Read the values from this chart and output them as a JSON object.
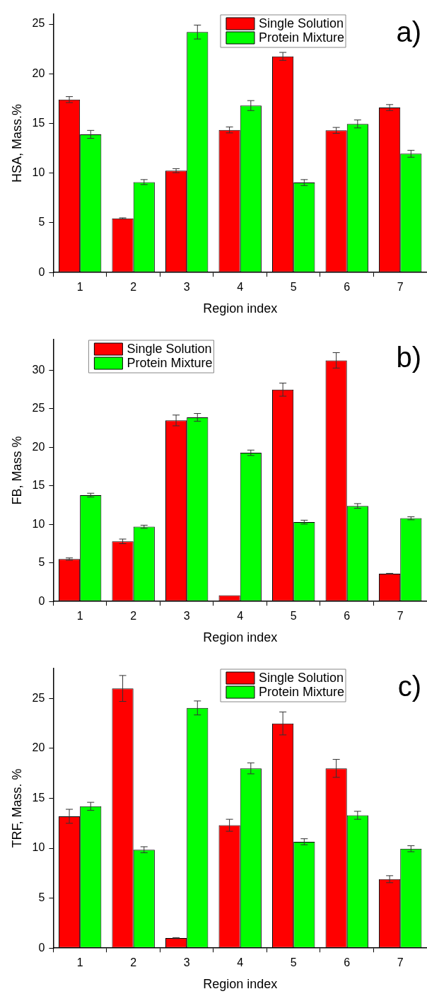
{
  "chart_data": [
    {
      "type": "bar",
      "xlabel": "Region index",
      "ylabel": "HSA, Mass.%",
      "categories": [
        "1",
        "2",
        "3",
        "4",
        "5",
        "6",
        "7"
      ],
      "ylim": [
        0,
        26
      ],
      "yticks": [
        0,
        5,
        10,
        15,
        20,
        25
      ],
      "grid": false,
      "legend": "top right",
      "annotations": [
        "a)"
      ],
      "series": [
        {
          "name": "Single Solution",
          "color": "#ff0000",
          "values": [
            17.4,
            5.45,
            10.25,
            14.35,
            21.75,
            14.3,
            16.6
          ],
          "errors": [
            0.3,
            0.05,
            0.2,
            0.3,
            0.4,
            0.3,
            0.3
          ]
        },
        {
          "name": "Protein Mixture",
          "color": "#00ff00",
          "values": [
            13.9,
            9.1,
            24.2,
            16.8,
            9.05,
            14.95,
            11.95
          ],
          "errors": [
            0.4,
            0.25,
            0.7,
            0.5,
            0.3,
            0.4,
            0.35
          ]
        }
      ]
    },
    {
      "type": "bar",
      "xlabel": "Region index",
      "ylabel": "FB, Mass %",
      "categories": [
        "1",
        "2",
        "3",
        "4",
        "5",
        "6",
        "7"
      ],
      "ylim": [
        0,
        34
      ],
      "yticks": [
        0,
        5,
        10,
        15,
        20,
        25,
        30
      ],
      "grid": false,
      "legend": "top left",
      "annotations": [
        "b)"
      ],
      "series": [
        {
          "name": "Single Solution",
          "color": "#ff0000",
          "values": [
            5.5,
            7.8,
            23.5,
            0.8,
            27.5,
            31.3,
            3.6
          ],
          "errors": [
            0.15,
            0.3,
            0.7,
            null,
            0.85,
            1.0,
            0.05
          ]
        },
        {
          "name": "Protein Mixture",
          "color": "#00ff00",
          "values": [
            13.8,
            9.7,
            23.9,
            19.3,
            10.3,
            12.4,
            10.8
          ],
          "errors": [
            0.25,
            0.2,
            0.5,
            0.35,
            0.25,
            0.3,
            0.2
          ]
        }
      ]
    },
    {
      "type": "bar",
      "xlabel": "Region index",
      "ylabel": "TRF, Mass. %",
      "categories": [
        "1",
        "2",
        "3",
        "4",
        "5",
        "6",
        "7"
      ],
      "ylim": [
        0,
        28
      ],
      "yticks": [
        0,
        5,
        10,
        15,
        20,
        25
      ],
      "grid": false,
      "legend": "top right",
      "annotations": [
        "c)"
      ],
      "series": [
        {
          "name": "Single Solution",
          "color": "#ff0000",
          "values": [
            13.2,
            26.0,
            1.0,
            12.3,
            22.5,
            18.0,
            6.9
          ],
          "errors": [
            0.7,
            1.3,
            0.05,
            0.6,
            1.15,
            0.9,
            0.35
          ]
        },
        {
          "name": "Protein Mixture",
          "color": "#00ff00",
          "values": [
            14.2,
            9.85,
            24.05,
            18.0,
            10.65,
            13.3,
            9.95
          ],
          "errors": [
            0.4,
            0.3,
            0.7,
            0.55,
            0.3,
            0.4,
            0.3
          ]
        }
      ]
    }
  ]
}
